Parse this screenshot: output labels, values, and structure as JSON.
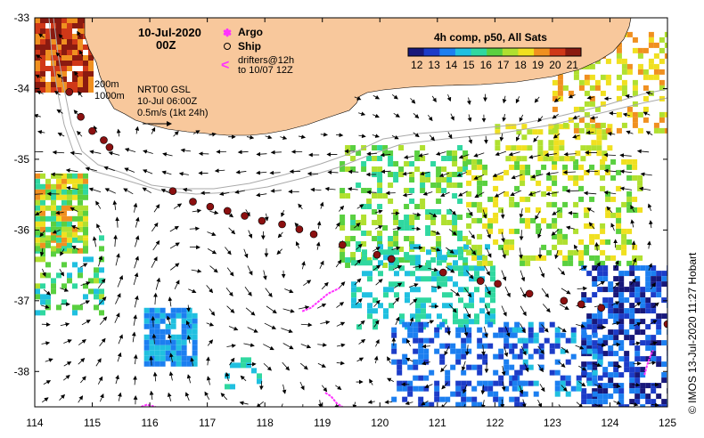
{
  "map": {
    "title": {
      "date": "10-Jul-2020",
      "time": "00Z"
    },
    "legend_items": {
      "argo": "Argo",
      "ship": "Ship",
      "drifters_line1": "drifters@12h",
      "drifters_line2": "to 10/07 12Z"
    },
    "colorbar": {
      "title": "4h comp, p50, All Sats",
      "ticks": [
        "12",
        "13",
        "14",
        "15",
        "16",
        "17",
        "18",
        "19",
        "20",
        "21"
      ],
      "range": [
        11.5,
        21.5
      ],
      "colors": [
        "#18187a",
        "#1c3cc8",
        "#1c7ff0",
        "#20c0e0",
        "#30d8a0",
        "#5ad040",
        "#b0e030",
        "#f0e020",
        "#f09020",
        "#d03818",
        "#8a1a10"
      ]
    },
    "annotations": {
      "depth1": "200m",
      "depth2": "1000m",
      "source": "NRT00 GSL",
      "source_time": "10-Jul 06:00Z",
      "scale": "0.5m/s (1kt 24h)"
    },
    "credit": "© IMOS 13-Jul-2020 11:27 Hobart",
    "axes": {
      "x_ticks": [
        "114",
        "115",
        "116",
        "117",
        "118",
        "119",
        "120",
        "121",
        "122",
        "123",
        "124",
        "125"
      ],
      "y_ticks": [
        "-33",
        "-34",
        "-35",
        "-36",
        "-37",
        "-38"
      ],
      "lon_range": [
        114,
        125
      ],
      "lat_range": [
        -38.5,
        -33
      ]
    },
    "colors": {
      "land": "#f8c89c",
      "drifter": "#ff30ff",
      "track": "#8b1010",
      "ocean": "#ffffff"
    },
    "ship_track": [
      [
        114.6,
        -34.05
      ],
      [
        114.8,
        -34.4
      ],
      [
        115.0,
        -34.6
      ],
      [
        115.2,
        -34.73
      ],
      [
        115.3,
        -34.83
      ],
      [
        116.4,
        -35.45
      ],
      [
        116.75,
        -35.6
      ],
      [
        117.05,
        -35.67
      ],
      [
        117.35,
        -35.73
      ],
      [
        117.65,
        -35.8
      ],
      [
        117.95,
        -35.87
      ],
      [
        118.3,
        -35.92
      ],
      [
        118.6,
        -35.99
      ],
      [
        118.85,
        -36.06
      ],
      [
        119.35,
        -36.21
      ],
      [
        119.95,
        -36.35
      ],
      [
        120.2,
        -36.41
      ],
      [
        121.1,
        -36.6
      ],
      [
        121.75,
        -36.72
      ],
      [
        122.05,
        -36.76
      ],
      [
        122.6,
        -36.9
      ],
      [
        123.2,
        -37.0
      ],
      [
        123.5,
        -37.05
      ],
      [
        123.85,
        -37.1
      ],
      [
        125.0,
        -37.33
      ]
    ],
    "drifters": [
      [
        [
          118.65,
          -37.15
        ],
        [
          118.8,
          -37.1
        ],
        [
          118.95,
          -37.0
        ],
        [
          119.1,
          -36.9
        ],
        [
          119.3,
          -36.82
        ]
      ],
      [
        [
          119.05,
          -38.3
        ],
        [
          119.15,
          -38.35
        ],
        [
          119.25,
          -38.45
        ],
        [
          119.35,
          -38.5
        ]
      ],
      [
        [
          115.85,
          -38.5
        ],
        [
          115.95,
          -38.47
        ],
        [
          116.1,
          -38.5
        ]
      ],
      [
        [
          124.6,
          -38.05
        ],
        [
          124.65,
          -37.9
        ],
        [
          124.72,
          -37.75
        ],
        [
          124.75,
          -37.7
        ]
      ]
    ]
  }
}
